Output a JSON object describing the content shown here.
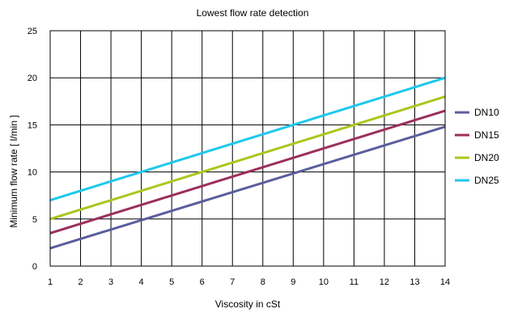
{
  "chart_data": {
    "type": "line",
    "title": "Lowest flow rate detection",
    "xlabel": "Viscosity in cSt",
    "ylabel": "Minimum flow rate [ l/min ]",
    "xlim": [
      1,
      14
    ],
    "ylim": [
      0,
      25
    ],
    "xticks": [
      1,
      2,
      3,
      4,
      5,
      6,
      7,
      8,
      9,
      10,
      11,
      12,
      13,
      14
    ],
    "yticks": [
      0,
      5,
      10,
      15,
      20,
      25
    ],
    "grid": true,
    "legend_position": "right",
    "series": [
      {
        "name": "DN10",
        "color": "#5b5e9c",
        "x": [
          1,
          14
        ],
        "y": [
          1.9,
          14.8
        ]
      },
      {
        "name": "DN15",
        "color": "#9b2f5c",
        "x": [
          1,
          14
        ],
        "y": [
          3.5,
          16.5
        ]
      },
      {
        "name": "DN20",
        "color": "#a8c81e",
        "x": [
          1,
          14
        ],
        "y": [
          5.0,
          18.0
        ]
      },
      {
        "name": "DN25",
        "color": "#1ec8ec",
        "x": [
          1,
          14
        ],
        "y": [
          7.0,
          20.0
        ]
      }
    ]
  }
}
